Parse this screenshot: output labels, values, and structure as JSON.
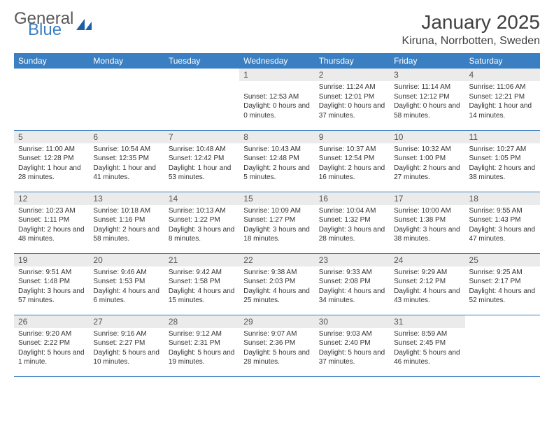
{
  "brand": {
    "word1": "General",
    "word2": "Blue",
    "logo_color": "#1d5fa6"
  },
  "title": "January 2025",
  "location": "Kiruna, Norrbotten, Sweden",
  "colors": {
    "header_bg": "#3a7fc2",
    "header_fg": "#ffffff",
    "daynum_bg": "#ebebeb",
    "row_border": "#3a7fc2",
    "text": "#333333"
  },
  "weekdays": [
    "Sunday",
    "Monday",
    "Tuesday",
    "Wednesday",
    "Thursday",
    "Friday",
    "Saturday"
  ],
  "weeks": [
    [
      {
        "n": "",
        "lines": []
      },
      {
        "n": "",
        "lines": []
      },
      {
        "n": "",
        "lines": []
      },
      {
        "n": "1",
        "lines": [
          "",
          "Sunset: 12:53 AM",
          "Daylight: 0 hours and 0 minutes."
        ]
      },
      {
        "n": "2",
        "lines": [
          "Sunrise: 11:24 AM",
          "Sunset: 12:01 PM",
          "Daylight: 0 hours and 37 minutes."
        ]
      },
      {
        "n": "3",
        "lines": [
          "Sunrise: 11:14 AM",
          "Sunset: 12:12 PM",
          "Daylight: 0 hours and 58 minutes."
        ]
      },
      {
        "n": "4",
        "lines": [
          "Sunrise: 11:06 AM",
          "Sunset: 12:21 PM",
          "Daylight: 1 hour and 14 minutes."
        ]
      }
    ],
    [
      {
        "n": "5",
        "lines": [
          "Sunrise: 11:00 AM",
          "Sunset: 12:28 PM",
          "Daylight: 1 hour and 28 minutes."
        ]
      },
      {
        "n": "6",
        "lines": [
          "Sunrise: 10:54 AM",
          "Sunset: 12:35 PM",
          "Daylight: 1 hour and 41 minutes."
        ]
      },
      {
        "n": "7",
        "lines": [
          "Sunrise: 10:48 AM",
          "Sunset: 12:42 PM",
          "Daylight: 1 hour and 53 minutes."
        ]
      },
      {
        "n": "8",
        "lines": [
          "Sunrise: 10:43 AM",
          "Sunset: 12:48 PM",
          "Daylight: 2 hours and 5 minutes."
        ]
      },
      {
        "n": "9",
        "lines": [
          "Sunrise: 10:37 AM",
          "Sunset: 12:54 PM",
          "Daylight: 2 hours and 16 minutes."
        ]
      },
      {
        "n": "10",
        "lines": [
          "Sunrise: 10:32 AM",
          "Sunset: 1:00 PM",
          "Daylight: 2 hours and 27 minutes."
        ]
      },
      {
        "n": "11",
        "lines": [
          "Sunrise: 10:27 AM",
          "Sunset: 1:05 PM",
          "Daylight: 2 hours and 38 minutes."
        ]
      }
    ],
    [
      {
        "n": "12",
        "lines": [
          "Sunrise: 10:23 AM",
          "Sunset: 1:11 PM",
          "Daylight: 2 hours and 48 minutes."
        ]
      },
      {
        "n": "13",
        "lines": [
          "Sunrise: 10:18 AM",
          "Sunset: 1:16 PM",
          "Daylight: 2 hours and 58 minutes."
        ]
      },
      {
        "n": "14",
        "lines": [
          "Sunrise: 10:13 AM",
          "Sunset: 1:22 PM",
          "Daylight: 3 hours and 8 minutes."
        ]
      },
      {
        "n": "15",
        "lines": [
          "Sunrise: 10:09 AM",
          "Sunset: 1:27 PM",
          "Daylight: 3 hours and 18 minutes."
        ]
      },
      {
        "n": "16",
        "lines": [
          "Sunrise: 10:04 AM",
          "Sunset: 1:32 PM",
          "Daylight: 3 hours and 28 minutes."
        ]
      },
      {
        "n": "17",
        "lines": [
          "Sunrise: 10:00 AM",
          "Sunset: 1:38 PM",
          "Daylight: 3 hours and 38 minutes."
        ]
      },
      {
        "n": "18",
        "lines": [
          "Sunrise: 9:55 AM",
          "Sunset: 1:43 PM",
          "Daylight: 3 hours and 47 minutes."
        ]
      }
    ],
    [
      {
        "n": "19",
        "lines": [
          "Sunrise: 9:51 AM",
          "Sunset: 1:48 PM",
          "Daylight: 3 hours and 57 minutes."
        ]
      },
      {
        "n": "20",
        "lines": [
          "Sunrise: 9:46 AM",
          "Sunset: 1:53 PM",
          "Daylight: 4 hours and 6 minutes."
        ]
      },
      {
        "n": "21",
        "lines": [
          "Sunrise: 9:42 AM",
          "Sunset: 1:58 PM",
          "Daylight: 4 hours and 15 minutes."
        ]
      },
      {
        "n": "22",
        "lines": [
          "Sunrise: 9:38 AM",
          "Sunset: 2:03 PM",
          "Daylight: 4 hours and 25 minutes."
        ]
      },
      {
        "n": "23",
        "lines": [
          "Sunrise: 9:33 AM",
          "Sunset: 2:08 PM",
          "Daylight: 4 hours and 34 minutes."
        ]
      },
      {
        "n": "24",
        "lines": [
          "Sunrise: 9:29 AM",
          "Sunset: 2:12 PM",
          "Daylight: 4 hours and 43 minutes."
        ]
      },
      {
        "n": "25",
        "lines": [
          "Sunrise: 9:25 AM",
          "Sunset: 2:17 PM",
          "Daylight: 4 hours and 52 minutes."
        ]
      }
    ],
    [
      {
        "n": "26",
        "lines": [
          "Sunrise: 9:20 AM",
          "Sunset: 2:22 PM",
          "Daylight: 5 hours and 1 minute."
        ]
      },
      {
        "n": "27",
        "lines": [
          "Sunrise: 9:16 AM",
          "Sunset: 2:27 PM",
          "Daylight: 5 hours and 10 minutes."
        ]
      },
      {
        "n": "28",
        "lines": [
          "Sunrise: 9:12 AM",
          "Sunset: 2:31 PM",
          "Daylight: 5 hours and 19 minutes."
        ]
      },
      {
        "n": "29",
        "lines": [
          "Sunrise: 9:07 AM",
          "Sunset: 2:36 PM",
          "Daylight: 5 hours and 28 minutes."
        ]
      },
      {
        "n": "30",
        "lines": [
          "Sunrise: 9:03 AM",
          "Sunset: 2:40 PM",
          "Daylight: 5 hours and 37 minutes."
        ]
      },
      {
        "n": "31",
        "lines": [
          "Sunrise: 8:59 AM",
          "Sunset: 2:45 PM",
          "Daylight: 5 hours and 46 minutes."
        ]
      },
      {
        "n": "",
        "lines": []
      }
    ]
  ]
}
